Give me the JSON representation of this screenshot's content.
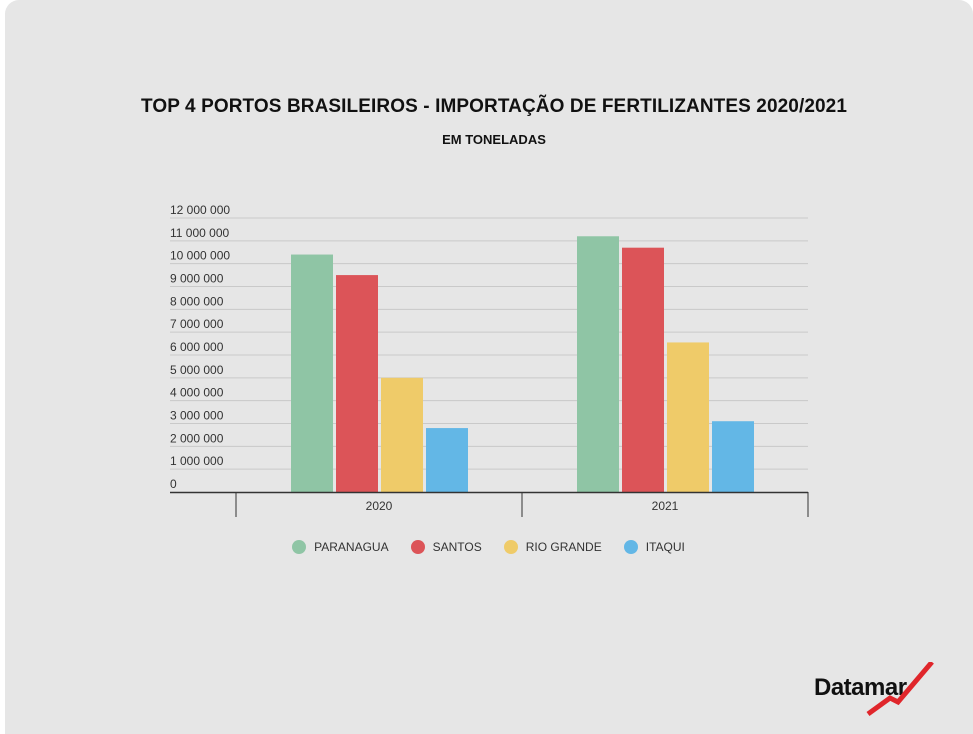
{
  "title": "TOP 4 PORTOS BRASILEIROS - IMPORTAÇÃO DE FERTILIZANTES 2020/2021",
  "subtitle": "EM TONELADAS",
  "logo": {
    "text": "Datamar"
  },
  "chart_data": {
    "type": "bar",
    "title": "TOP 4 PORTOS BRASILEIROS - IMPORTAÇÃO DE FERTILIZANTES 2020/2021",
    "subtitle": "EM TONELADAS",
    "xlabel": "",
    "ylabel": "",
    "categories": [
      "2020",
      "2021"
    ],
    "ylim": [
      0,
      12000000
    ],
    "yticks": [
      {
        "value": 0,
        "label": "0"
      },
      {
        "value": 1000000,
        "label": "1 000 000"
      },
      {
        "value": 2000000,
        "label": "2 000 000"
      },
      {
        "value": 3000000,
        "label": "3 000 000"
      },
      {
        "value": 4000000,
        "label": "4 000 000"
      },
      {
        "value": 5000000,
        "label": "5 000 000"
      },
      {
        "value": 6000000,
        "label": "6 000 000"
      },
      {
        "value": 7000000,
        "label": "7 000 000"
      },
      {
        "value": 8000000,
        "label": "8 000 000"
      },
      {
        "value": 9000000,
        "label": "9 000 000"
      },
      {
        "value": 10000000,
        "label": "10 000 000"
      },
      {
        "value": 11000000,
        "label": "11 000 000"
      },
      {
        "value": 12000000,
        "label": "12 000 000"
      }
    ],
    "grid": true,
    "legend": "bottom",
    "series": [
      {
        "name": "PARANAGUA",
        "color": "#8fc5a5",
        "values": [
          10400000,
          11200000
        ]
      },
      {
        "name": "SANTOS",
        "color": "#dc5458",
        "values": [
          9500000,
          10700000
        ]
      },
      {
        "name": "RIO GRANDE",
        "color": "#efcb69",
        "values": [
          5000000,
          6550000
        ]
      },
      {
        "name": "ITAQUI",
        "color": "#63b7e6",
        "values": [
          2800000,
          3100000
        ]
      }
    ]
  }
}
